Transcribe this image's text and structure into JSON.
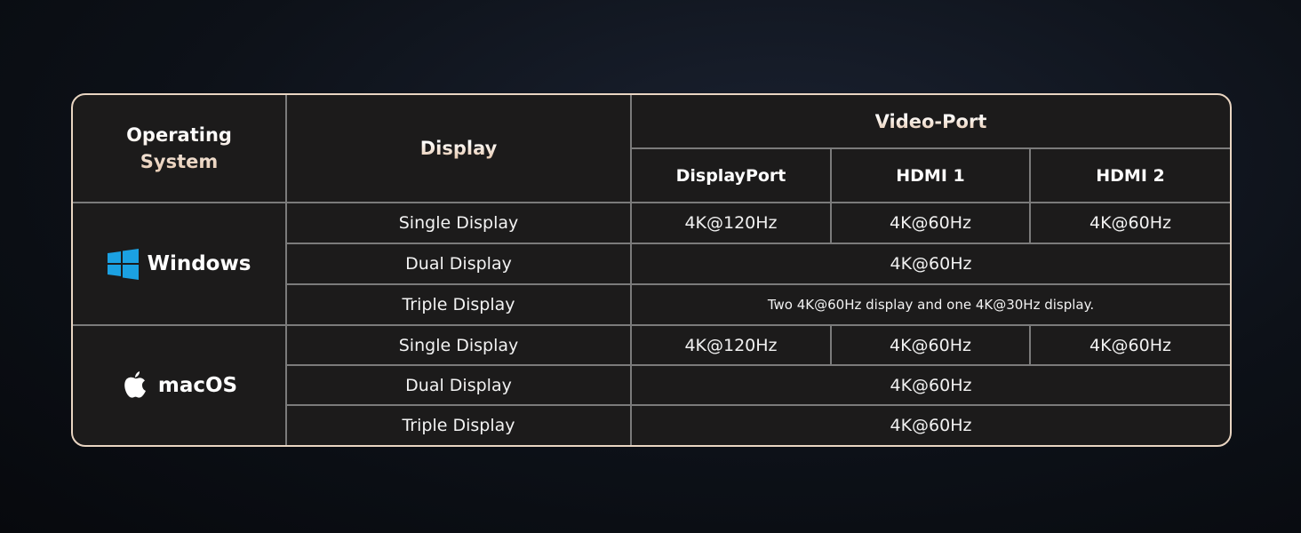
{
  "header": {
    "os": "Operating System",
    "display": "Display",
    "video_port": "Video-Port",
    "ports": [
      "DisplayPort",
      "HDMI 1",
      "HDMI 2"
    ]
  },
  "windows": {
    "name": "Windows",
    "icon": "windows-logo-icon",
    "icon_color": "#1ba1e2",
    "rows": [
      {
        "display": "Single Display",
        "values": [
          "4K@120Hz",
          "4K@60Hz",
          "4K@60Hz"
        ]
      },
      {
        "display": "Dual Display",
        "merged": "4K@60Hz"
      },
      {
        "display": "Triple Display",
        "merged": "Two 4K@60Hz display and one 4K@30Hz display."
      }
    ]
  },
  "macos": {
    "name": "macOS",
    "icon": "apple-logo-icon",
    "rows": [
      {
        "display": "Single Display",
        "values": [
          "4K@120Hz",
          "4K@60Hz",
          "4K@60Hz"
        ]
      },
      {
        "display": "Dual Display",
        "merged": "4K@60Hz"
      },
      {
        "display": "Triple Display",
        "merged": "4K@60Hz"
      }
    ]
  },
  "colors": {
    "border": "#e9d5c2",
    "grid": "#7b7b7b",
    "table_bg": "#1c1b1b"
  }
}
